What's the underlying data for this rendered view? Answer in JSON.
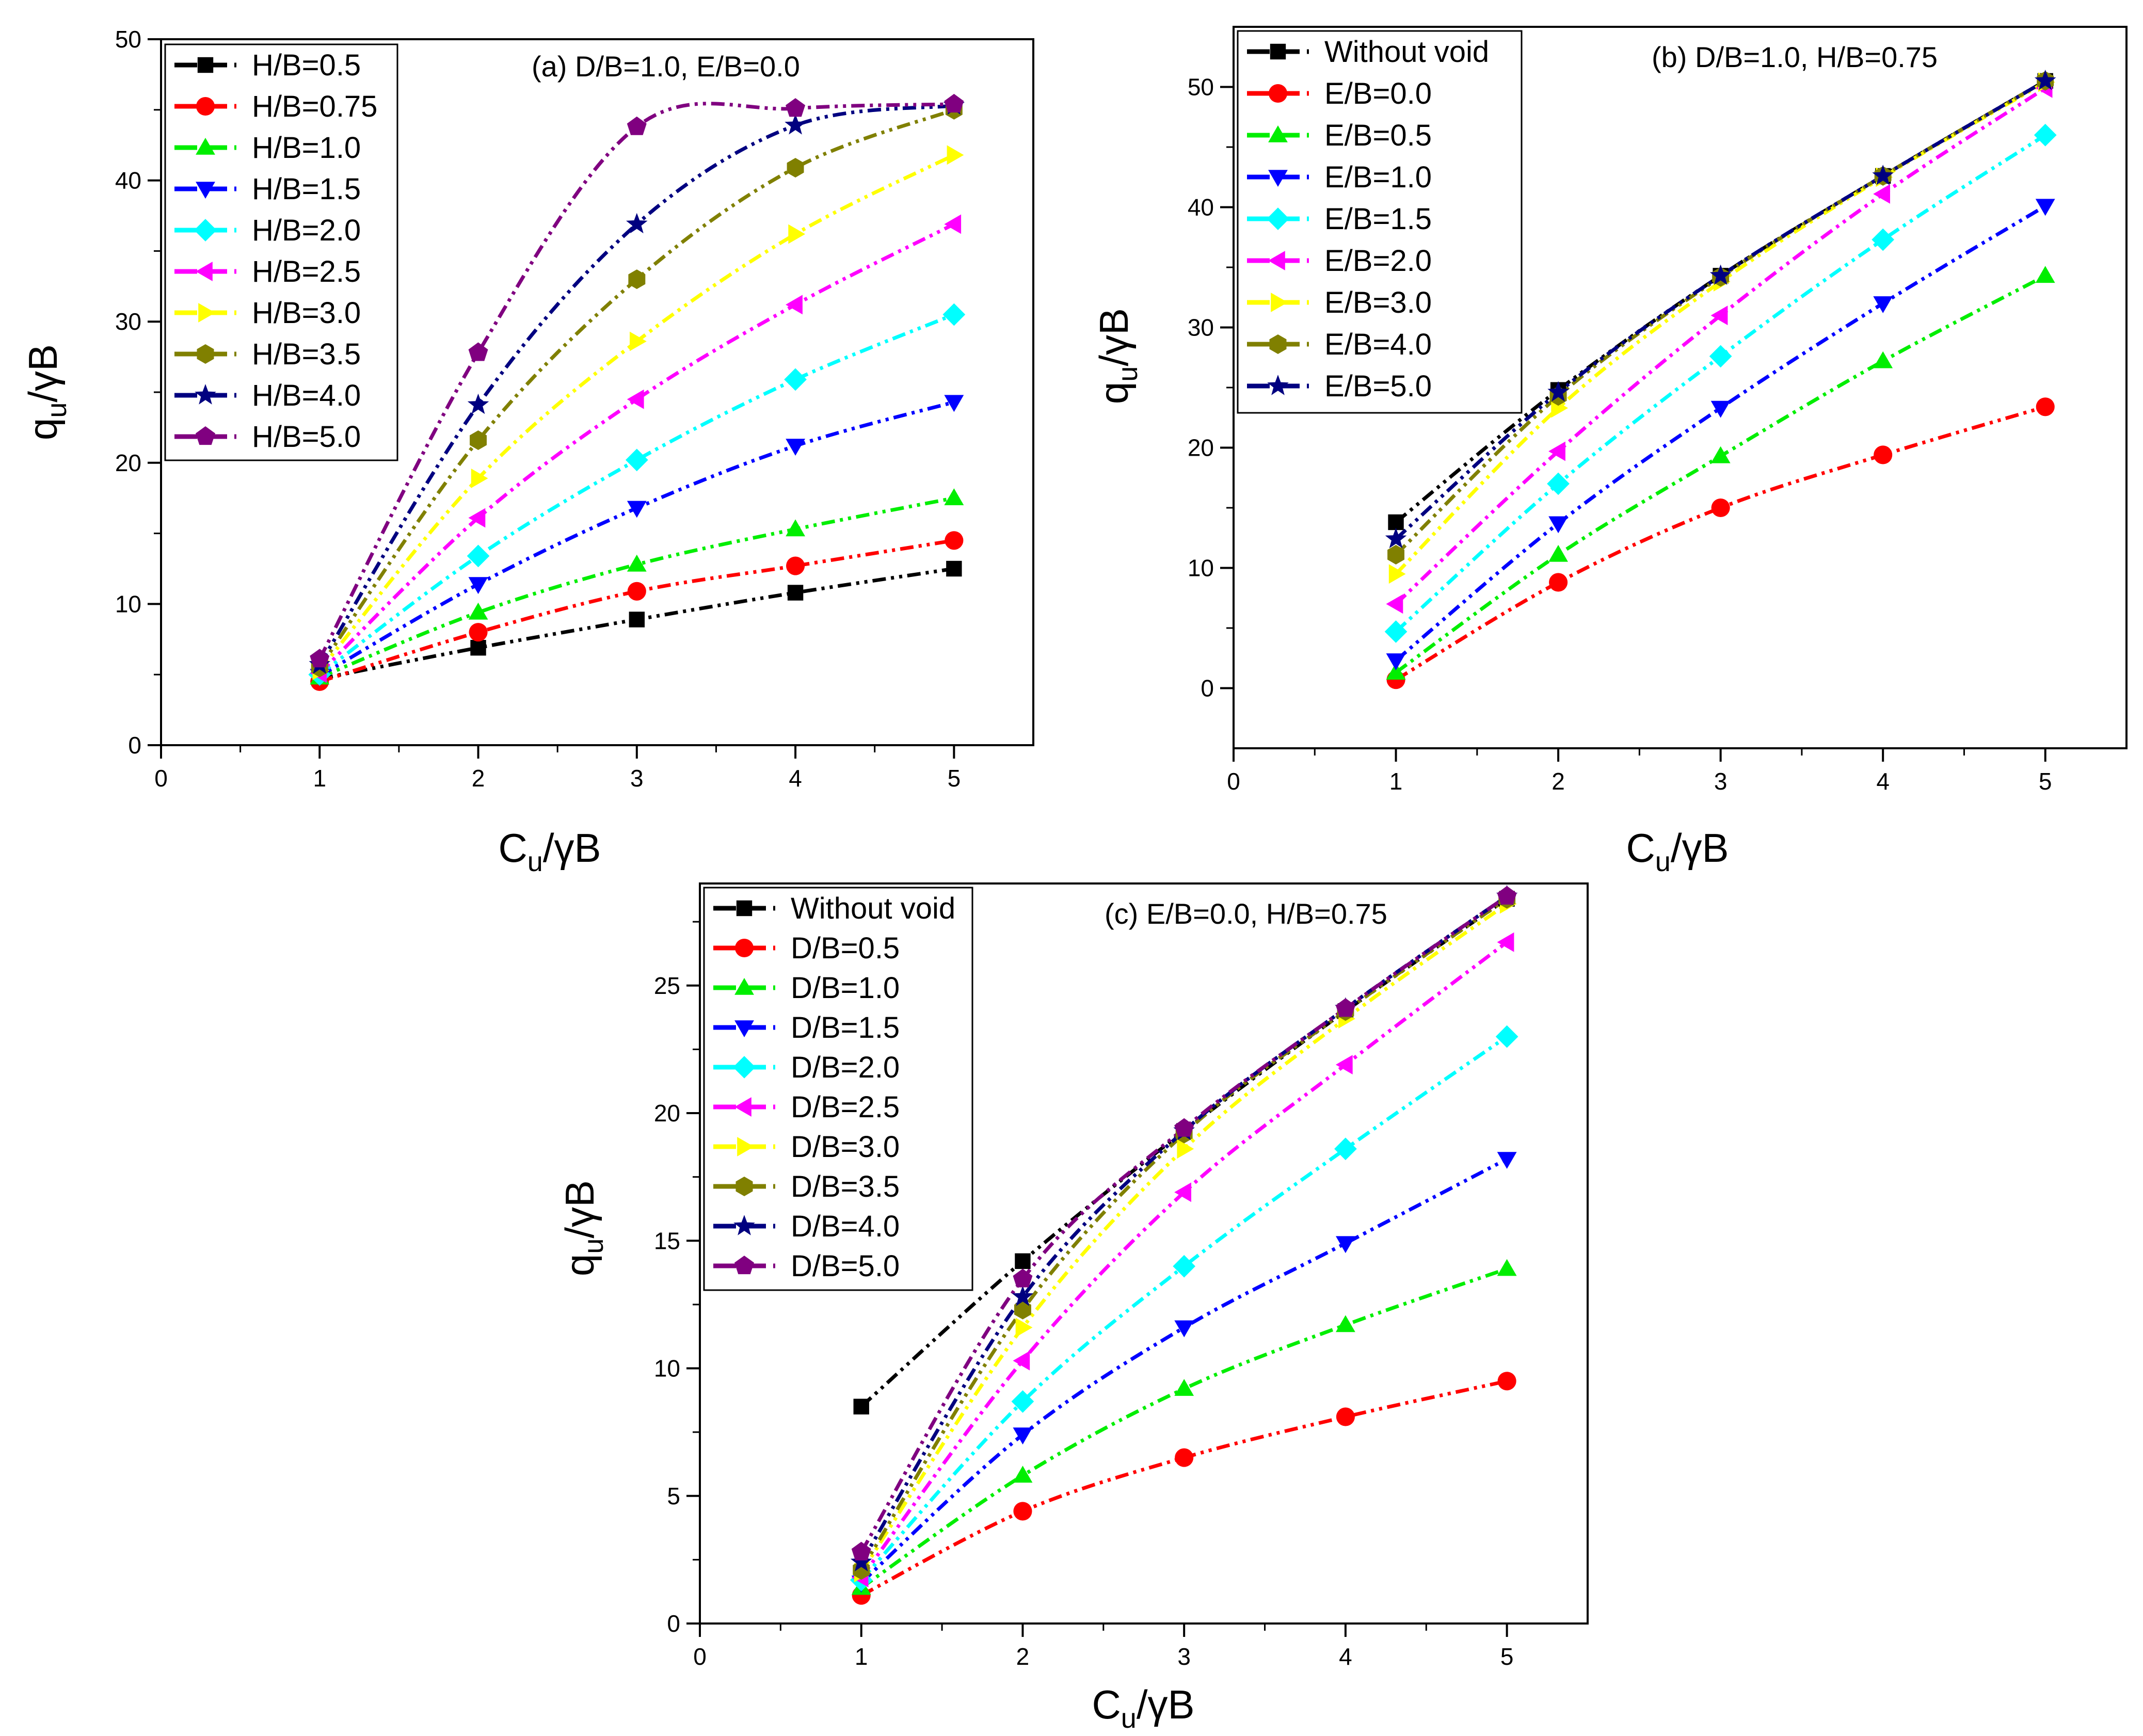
{
  "figure": {
    "colors": {
      "black": "#000000",
      "red": "#ff0000",
      "green": "#00ee00",
      "blue": "#0000ff",
      "cyan": "#00ffff",
      "magenta": "#ff00ff",
      "yellow": "#ffff00",
      "olive": "#808000",
      "navy": "#000080",
      "purple": "#800080"
    }
  },
  "chart_data": [
    {
      "id": "a",
      "type": "line",
      "title": "(a) D/B=1.0, E/B=0.0",
      "xlabel": {
        "main": "C",
        "sub": "u",
        "rest": "/γB"
      },
      "ylabel": {
        "main": "q",
        "sub": "u",
        "rest": "/γB"
      },
      "xlim": [
        0,
        5.5
      ],
      "ylim": [
        0,
        50
      ],
      "xticks": [
        0,
        1,
        2,
        3,
        4,
        5
      ],
      "yticks": [
        0,
        10,
        20,
        30,
        40,
        50
      ],
      "grid": false,
      "legend_position": "top-left",
      "x": [
        1,
        2,
        3,
        4,
        5
      ],
      "series": [
        {
          "name": "H/B=0.5",
          "color": "black",
          "marker": "square",
          "values": [
            4.7,
            6.9,
            8.9,
            10.8,
            12.5
          ]
        },
        {
          "name": "H/B=0.75",
          "color": "red",
          "marker": "circle",
          "values": [
            4.5,
            8.0,
            10.9,
            12.7,
            14.5
          ]
        },
        {
          "name": "H/B=1.0",
          "color": "green",
          "marker": "triangle-up",
          "values": [
            4.8,
            9.4,
            12.8,
            15.3,
            17.5
          ]
        },
        {
          "name": "H/B=1.5",
          "color": "blue",
          "marker": "triangle-down",
          "values": [
            4.9,
            11.4,
            16.8,
            21.2,
            24.3
          ]
        },
        {
          "name": "H/B=2.0",
          "color": "cyan",
          "marker": "diamond",
          "values": [
            5.0,
            13.4,
            20.2,
            25.9,
            30.5
          ]
        },
        {
          "name": "H/B=2.5",
          "color": "magenta",
          "marker": "triangle-left",
          "values": [
            5.1,
            16.1,
            24.5,
            31.2,
            36.9
          ]
        },
        {
          "name": "H/B=3.0",
          "color": "yellow",
          "marker": "triangle-right",
          "values": [
            5.3,
            18.9,
            28.6,
            36.2,
            41.8
          ]
        },
        {
          "name": "H/B=3.5",
          "color": "olive",
          "marker": "hexagon",
          "values": [
            5.5,
            21.6,
            33.0,
            40.9,
            45.0
          ]
        },
        {
          "name": "H/B=4.0",
          "color": "navy",
          "marker": "star",
          "values": [
            5.7,
            24.1,
            36.9,
            43.9,
            45.3
          ]
        },
        {
          "name": "H/B=5.0",
          "color": "purple",
          "marker": "pentagon",
          "values": [
            6.1,
            27.8,
            43.8,
            45.1,
            45.4
          ]
        }
      ]
    },
    {
      "id": "b",
      "type": "line",
      "title": "(b) D/B=1.0, H/B=0.75",
      "xlabel": {
        "main": "C",
        "sub": "u",
        "rest": "/γB"
      },
      "ylabel": {
        "main": "q",
        "sub": "u",
        "rest": "/γB"
      },
      "xlim": [
        0,
        5.5
      ],
      "ylim": [
        -5,
        55
      ],
      "xticks": [
        0,
        1,
        2,
        3,
        4,
        5
      ],
      "yticks": [
        0,
        10,
        20,
        30,
        40,
        50
      ],
      "grid": false,
      "legend_position": "top-left",
      "x": [
        1,
        2,
        3,
        4,
        5
      ],
      "series": [
        {
          "name": "Without void",
          "color": "black",
          "marker": "square",
          "values": [
            13.8,
            24.8,
            34.3,
            42.6,
            50.5
          ]
        },
        {
          "name": "E/B=0.0",
          "color": "red",
          "marker": "circle",
          "values": [
            0.7,
            8.8,
            15.0,
            19.4,
            23.4
          ]
        },
        {
          "name": "E/B=0.5",
          "color": "green",
          "marker": "triangle-up",
          "values": [
            1.3,
            11.1,
            19.3,
            27.2,
            34.3
          ]
        },
        {
          "name": "E/B=1.0",
          "color": "blue",
          "marker": "triangle-down",
          "values": [
            2.3,
            13.7,
            23.3,
            32.0,
            40.1
          ]
        },
        {
          "name": "E/B=1.5",
          "color": "cyan",
          "marker": "diamond",
          "values": [
            4.7,
            17.0,
            27.6,
            37.3,
            46.0
          ]
        },
        {
          "name": "E/B=2.0",
          "color": "magenta",
          "marker": "triangle-left",
          "values": [
            7.0,
            19.7,
            31.0,
            41.1,
            49.9
          ]
        },
        {
          "name": "E/B=3.0",
          "color": "yellow",
          "marker": "triangle-right",
          "values": [
            9.5,
            23.3,
            33.8,
            42.5,
            50.4
          ]
        },
        {
          "name": "E/B=4.0",
          "color": "olive",
          "marker": "hexagon",
          "values": [
            11.1,
            24.3,
            34.2,
            42.6,
            50.5
          ]
        },
        {
          "name": "E/B=5.0",
          "color": "navy",
          "marker": "star",
          "values": [
            12.4,
            24.6,
            34.3,
            42.6,
            50.5
          ]
        }
      ]
    },
    {
      "id": "c",
      "type": "line",
      "title": "(c)  E/B=0.0, H/B=0.75",
      "xlabel": {
        "main": "C",
        "sub": "u",
        "rest": "/γB"
      },
      "ylabel": {
        "main": "q",
        "sub": "u",
        "rest": "/γB"
      },
      "xlim": [
        0,
        5.5
      ],
      "ylim": [
        0,
        29
      ],
      "xticks": [
        0,
        1,
        2,
        3,
        4,
        5
      ],
      "yticks": [
        0,
        5,
        10,
        15,
        20,
        25
      ],
      "grid": false,
      "legend_position": "top-left",
      "x": [
        1,
        2,
        3,
        4,
        5
      ],
      "series": [
        {
          "name": "Without void",
          "color": "black",
          "marker": "square",
          "values": [
            8.5,
            14.2,
            19.3,
            24.0,
            28.4
          ]
        },
        {
          "name": "D/B=0.5",
          "color": "red",
          "marker": "circle",
          "values": [
            1.1,
            4.4,
            6.5,
            8.1,
            9.5
          ]
        },
        {
          "name": "D/B=1.0",
          "color": "green",
          "marker": "triangle-up",
          "values": [
            1.4,
            5.8,
            9.2,
            11.7,
            13.9
          ]
        },
        {
          "name": "D/B=1.5",
          "color": "blue",
          "marker": "triangle-down",
          "values": [
            1.6,
            7.4,
            11.6,
            14.9,
            18.2
          ]
        },
        {
          "name": "D/B=2.0",
          "color": "cyan",
          "marker": "diamond",
          "values": [
            1.7,
            8.7,
            14.0,
            18.6,
            23.0
          ]
        },
        {
          "name": "D/B=2.5",
          "color": "magenta",
          "marker": "triangle-left",
          "values": [
            1.8,
            10.3,
            16.9,
            21.9,
            26.7
          ]
        },
        {
          "name": "D/B=3.0",
          "color": "yellow",
          "marker": "triangle-right",
          "values": [
            2.0,
            11.6,
            18.6,
            23.7,
            28.2
          ]
        },
        {
          "name": "D/B=3.5",
          "color": "olive",
          "marker": "hexagon",
          "values": [
            2.1,
            12.3,
            19.2,
            24.0,
            28.4
          ]
        },
        {
          "name": "D/B=4.0",
          "color": "navy",
          "marker": "star",
          "values": [
            2.4,
            12.8,
            19.3,
            24.1,
            28.5
          ]
        },
        {
          "name": "D/B=5.0",
          "color": "purple",
          "marker": "pentagon",
          "values": [
            2.8,
            13.5,
            19.4,
            24.1,
            28.5
          ]
        }
      ]
    }
  ]
}
